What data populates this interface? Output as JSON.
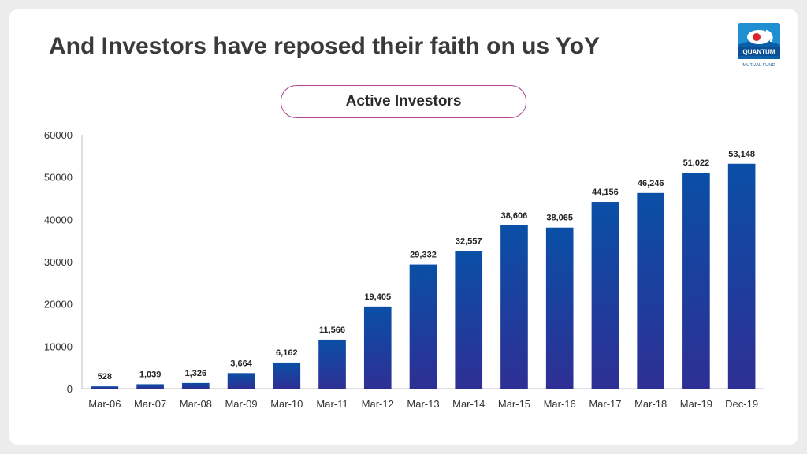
{
  "slide": {
    "title": "And Investors have reposed their faith on us YoY",
    "logo": {
      "name": "QUANTUM",
      "subtitle": "MUTUAL FUND"
    }
  },
  "chart_data": {
    "type": "bar",
    "title": "Active Investors",
    "categories": [
      "Mar-06",
      "Mar-07",
      "Mar-08",
      "Mar-09",
      "Mar-10",
      "Mar-11",
      "Mar-12",
      "Mar-13",
      "Mar-14",
      "Mar-15",
      "Mar-16",
      "Mar-17",
      "Mar-18",
      "Mar-19",
      "Dec-19"
    ],
    "values": [
      528,
      1039,
      1326,
      3664,
      6162,
      11566,
      19405,
      29332,
      32557,
      38606,
      38065,
      44156,
      46246,
      51022,
      53148
    ],
    "data_labels": [
      "528",
      "1,039",
      "1,326",
      "3,664",
      "6,162",
      "11,566",
      "19,405",
      "29,332",
      "32,557",
      "38,606",
      "38,065",
      "44,156",
      "46,246",
      "51,022",
      "53,148"
    ],
    "y_ticks": [
      0,
      10000,
      20000,
      30000,
      40000,
      50000,
      60000
    ],
    "ylim": [
      0,
      60000
    ],
    "grid": false,
    "legend": "none",
    "bar_color_top": "#0a4fa6",
    "bar_color_bottom": "#2e2f94"
  }
}
